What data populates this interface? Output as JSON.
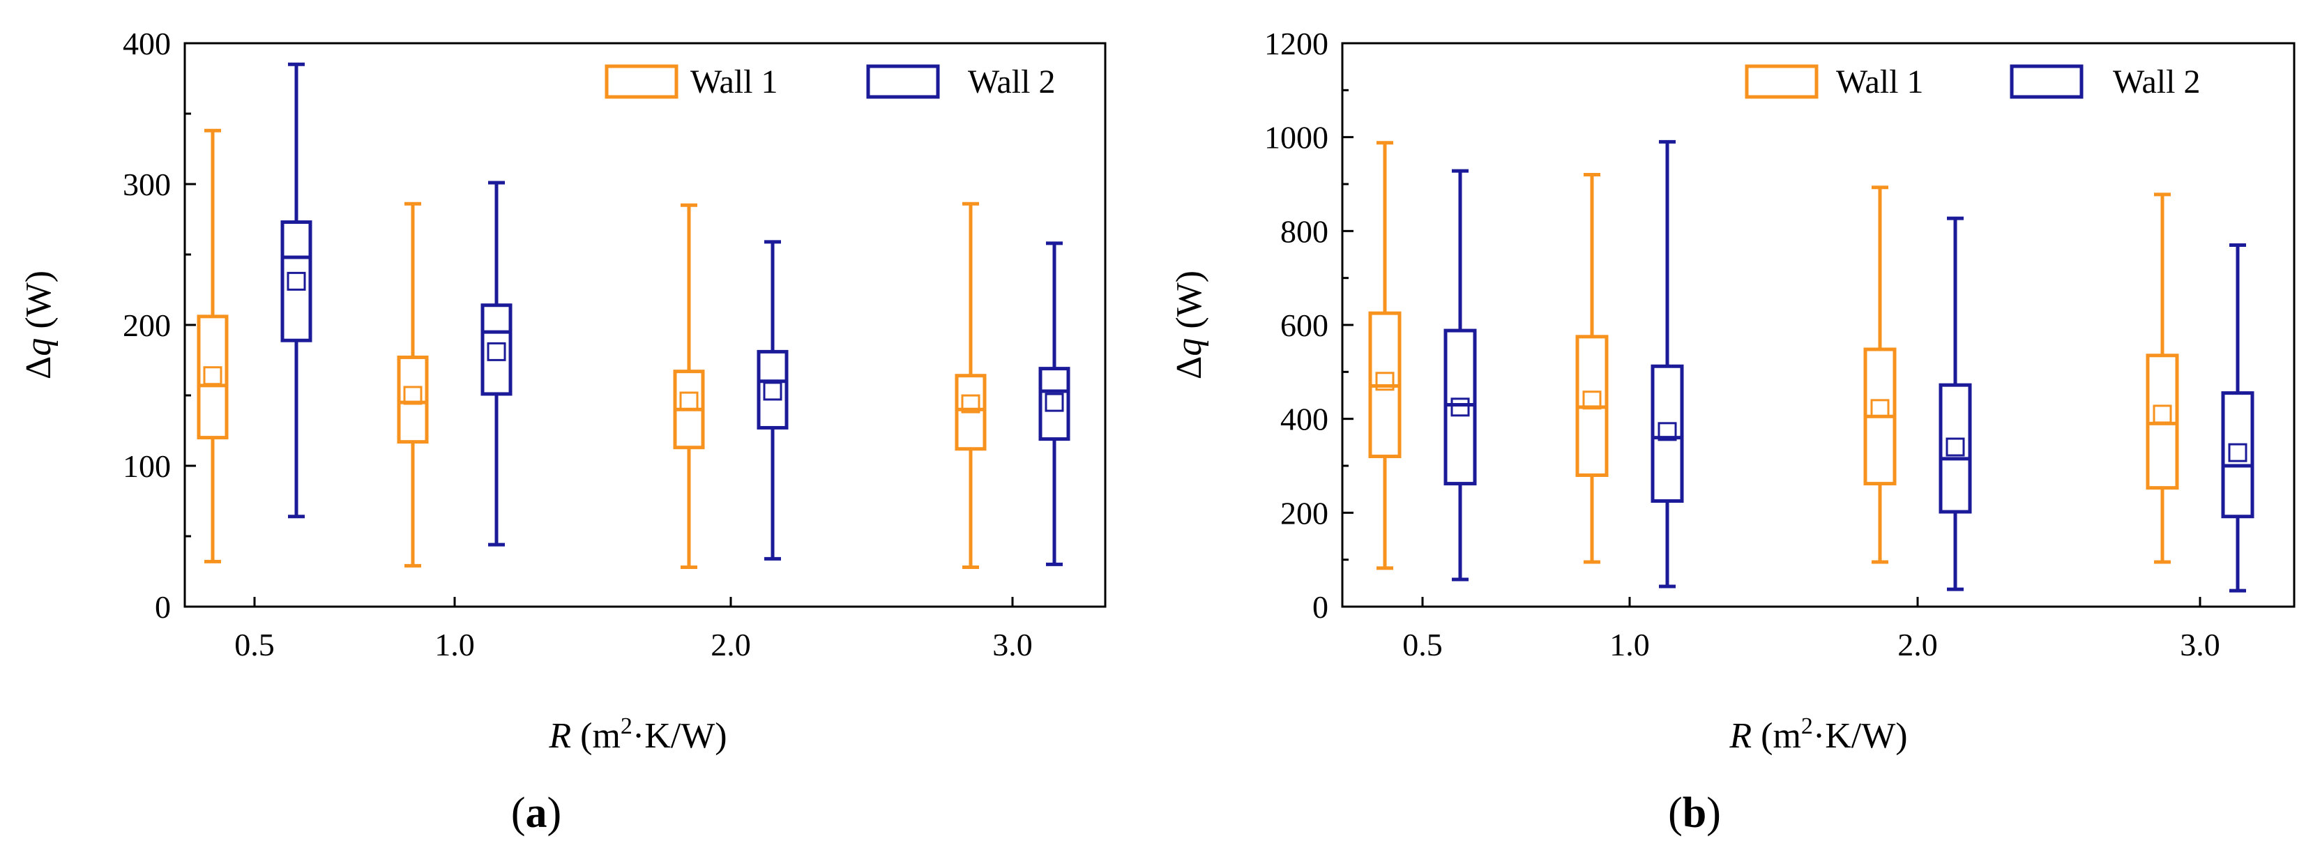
{
  "chart_data": [
    {
      "type": "box",
      "panel": "(a)",
      "caption": {
        "open": "(",
        "letter": "a",
        "close": ")"
      },
      "ylabel": {
        "delta": "Δ",
        "q": "q",
        "unit": " (W)"
      },
      "xlabel": {
        "r": "R",
        "unit_open": " (m",
        "sup": "2",
        "unit_close": "·K/W)"
      },
      "ylim": [
        0,
        400
      ],
      "yticks": [
        0,
        100,
        200,
        300,
        400
      ],
      "categories": [
        "0.5",
        "1.0",
        "2.0",
        "3.0"
      ],
      "legend": [
        "Wall 1",
        "Wall 2"
      ],
      "colors": [
        "#F7921E",
        "#1B1B9A"
      ],
      "series": [
        {
          "name": "Wall 1",
          "boxes": [
            {
              "min": 32,
              "q1": 120,
              "median": 157,
              "q3": 206,
              "max": 338,
              "mean": 164
            },
            {
              "min": 29,
              "q1": 117,
              "median": 145,
              "q3": 177,
              "max": 286,
              "mean": 150
            },
            {
              "min": 28,
              "q1": 113,
              "median": 140,
              "q3": 167,
              "max": 285,
              "mean": 146
            },
            {
              "min": 28,
              "q1": 112,
              "median": 140,
              "q3": 164,
              "max": 286,
              "mean": 144
            }
          ]
        },
        {
          "name": "Wall 2",
          "boxes": [
            {
              "min": 64,
              "q1": 189,
              "median": 248,
              "q3": 273,
              "max": 385,
              "mean": 231
            },
            {
              "min": 44,
              "q1": 151,
              "median": 195,
              "q3": 214,
              "max": 301,
              "mean": 181
            },
            {
              "min": 34,
              "q1": 127,
              "median": 160,
              "q3": 181,
              "max": 259,
              "mean": 153
            },
            {
              "min": 30,
              "q1": 119,
              "median": 153,
              "q3": 169,
              "max": 258,
              "mean": 145
            }
          ]
        }
      ]
    },
    {
      "type": "box",
      "panel": "(b)",
      "caption": {
        "open": "(",
        "letter": "b",
        "close": ")"
      },
      "ylabel": {
        "delta": "Δ",
        "q": "q",
        "unit": " (W)"
      },
      "xlabel": {
        "r": "R",
        "unit_open": " (m",
        "sup": "2",
        "unit_close": "·K/W)"
      },
      "ylim": [
        0,
        1200
      ],
      "yticks": [
        0,
        200,
        400,
        600,
        800,
        1000,
        1200
      ],
      "categories": [
        "0.5",
        "1.0",
        "2.0",
        "3.0"
      ],
      "legend": [
        "Wall 1",
        "Wall 2"
      ],
      "colors": [
        "#F7921E",
        "#1B1B9A"
      ],
      "series": [
        {
          "name": "Wall 1",
          "boxes": [
            {
              "min": 82,
              "q1": 320,
              "median": 470,
              "q3": 625,
              "max": 988,
              "mean": 480
            },
            {
              "min": 95,
              "q1": 280,
              "median": 425,
              "q3": 575,
              "max": 920,
              "mean": 440
            },
            {
              "min": 95,
              "q1": 262,
              "median": 405,
              "q3": 548,
              "max": 893,
              "mean": 422
            },
            {
              "min": 95,
              "q1": 253,
              "median": 390,
              "q3": 535,
              "max": 878,
              "mean": 410
            }
          ]
        },
        {
          "name": "Wall 2",
          "boxes": [
            {
              "min": 58,
              "q1": 262,
              "median": 430,
              "q3": 588,
              "max": 928,
              "mean": 425
            },
            {
              "min": 43,
              "q1": 225,
              "median": 360,
              "q3": 512,
              "max": 990,
              "mean": 373
            },
            {
              "min": 37,
              "q1": 202,
              "median": 315,
              "q3": 472,
              "max": 827,
              "mean": 340
            },
            {
              "min": 34,
              "q1": 192,
              "median": 300,
              "q3": 455,
              "max": 770,
              "mean": 328
            }
          ]
        }
      ]
    }
  ]
}
